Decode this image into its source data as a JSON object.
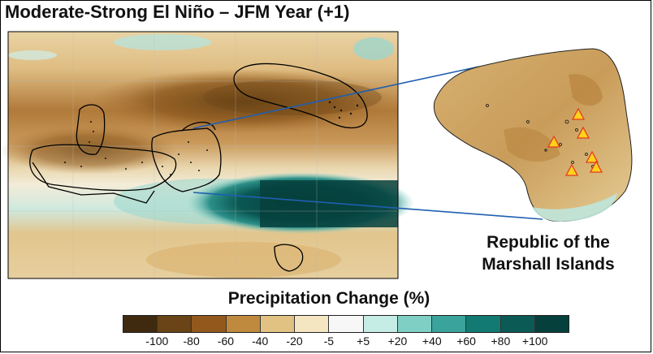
{
  "title": "Moderate-Strong El Niño – JFM Year (+1)",
  "inset_label_line1": "Republic of the",
  "inset_label_line2": "Marshall Islands",
  "legend": {
    "title": "Precipitation Change (%)",
    "colors": [
      "#3f2a10",
      "#6a4416",
      "#93591c",
      "#c08a3e",
      "#e2c283",
      "#f5e6c2",
      "#f7f7f7",
      "#c6ece6",
      "#7fcfc4",
      "#3aa39b",
      "#127a72",
      "#0b5a55",
      "#06403d"
    ],
    "ticks": [
      "-100",
      "-80",
      "-60",
      "-40",
      "-20",
      "-5",
      "+5",
      "+20",
      "+40",
      "+60",
      "+80",
      "+100"
    ]
  },
  "colors": {
    "boundary": "#000000",
    "connector": "#1f5fb0",
    "marker_fill": "#ffd21a",
    "marker_stroke": "#e23b1f"
  },
  "icons": [
    "triangle-marker-icon"
  ]
}
